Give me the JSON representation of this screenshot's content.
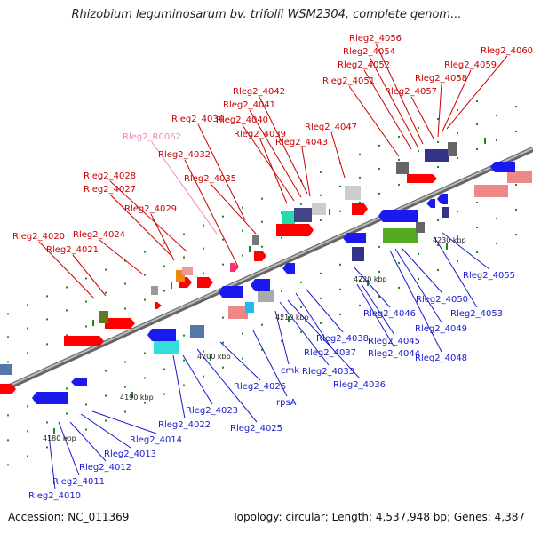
{
  "title": "Rhizobium leguminosarum bv. trifolii WSM2304, complete genom...",
  "footer": {
    "accession": "Accession: NC_011369",
    "summary": "Topology: circular; Length: 4,537,948 bp; Genes: 4,387"
  },
  "colors": {
    "forward_label": "#cc0000",
    "reverse_label": "#1a1acc",
    "rna_label": "#ee88bb",
    "backbone": "#999999",
    "forward_gene": "#ff0000",
    "reverse_gene": "#1a1aee",
    "tick": "#1a8a1a"
  },
  "axis_labels": [
    "4180 kbp",
    "4190 kbp",
    "4200 kbp",
    "4210 kbp",
    "4220 kbp",
    "4230 kbp"
  ],
  "forward_labels": [
    "Rleg2_4020",
    "Rleg2_4021",
    "Rleg2_4024",
    "Rleg2_4027",
    "Rleg2_4028",
    "Rleg2_4029",
    "Rleg2_4032",
    "Rleg2_4034",
    "Rleg2_4035",
    "Rleg2_4039",
    "Rleg2_4040",
    "Rleg2_4041",
    "Rleg2_4042",
    "Rleg2_4043",
    "Rleg2_4047",
    "Rleg2_4051",
    "Rleg2_4052",
    "Rleg2_4054",
    "Rleg2_4056",
    "Rleg2_4057",
    "Rleg2_4058",
    "Rleg2_4059",
    "Rleg2_4060"
  ],
  "rna_labels": [
    "Rleg2_R0062"
  ],
  "reverse_labels": [
    "Rleg2_4010",
    "Rleg2_4011",
    "Rleg2_4012",
    "Rleg2_4013",
    "Rleg2_4014",
    "Rleg2_4022",
    "Rleg2_4023",
    "Rleg2_4025",
    "Rleg2_4026",
    "rpsA",
    "cmk",
    "Rleg2_4033",
    "Rleg2_4036",
    "Rleg2_4037",
    "Rleg2_4038",
    "Rleg2_4044",
    "Rleg2_4045",
    "Rleg2_4046",
    "Rleg2_4048",
    "Rleg2_4049",
    "Rleg2_4050",
    "Rleg2_4053",
    "Rleg2_4055"
  ]
}
